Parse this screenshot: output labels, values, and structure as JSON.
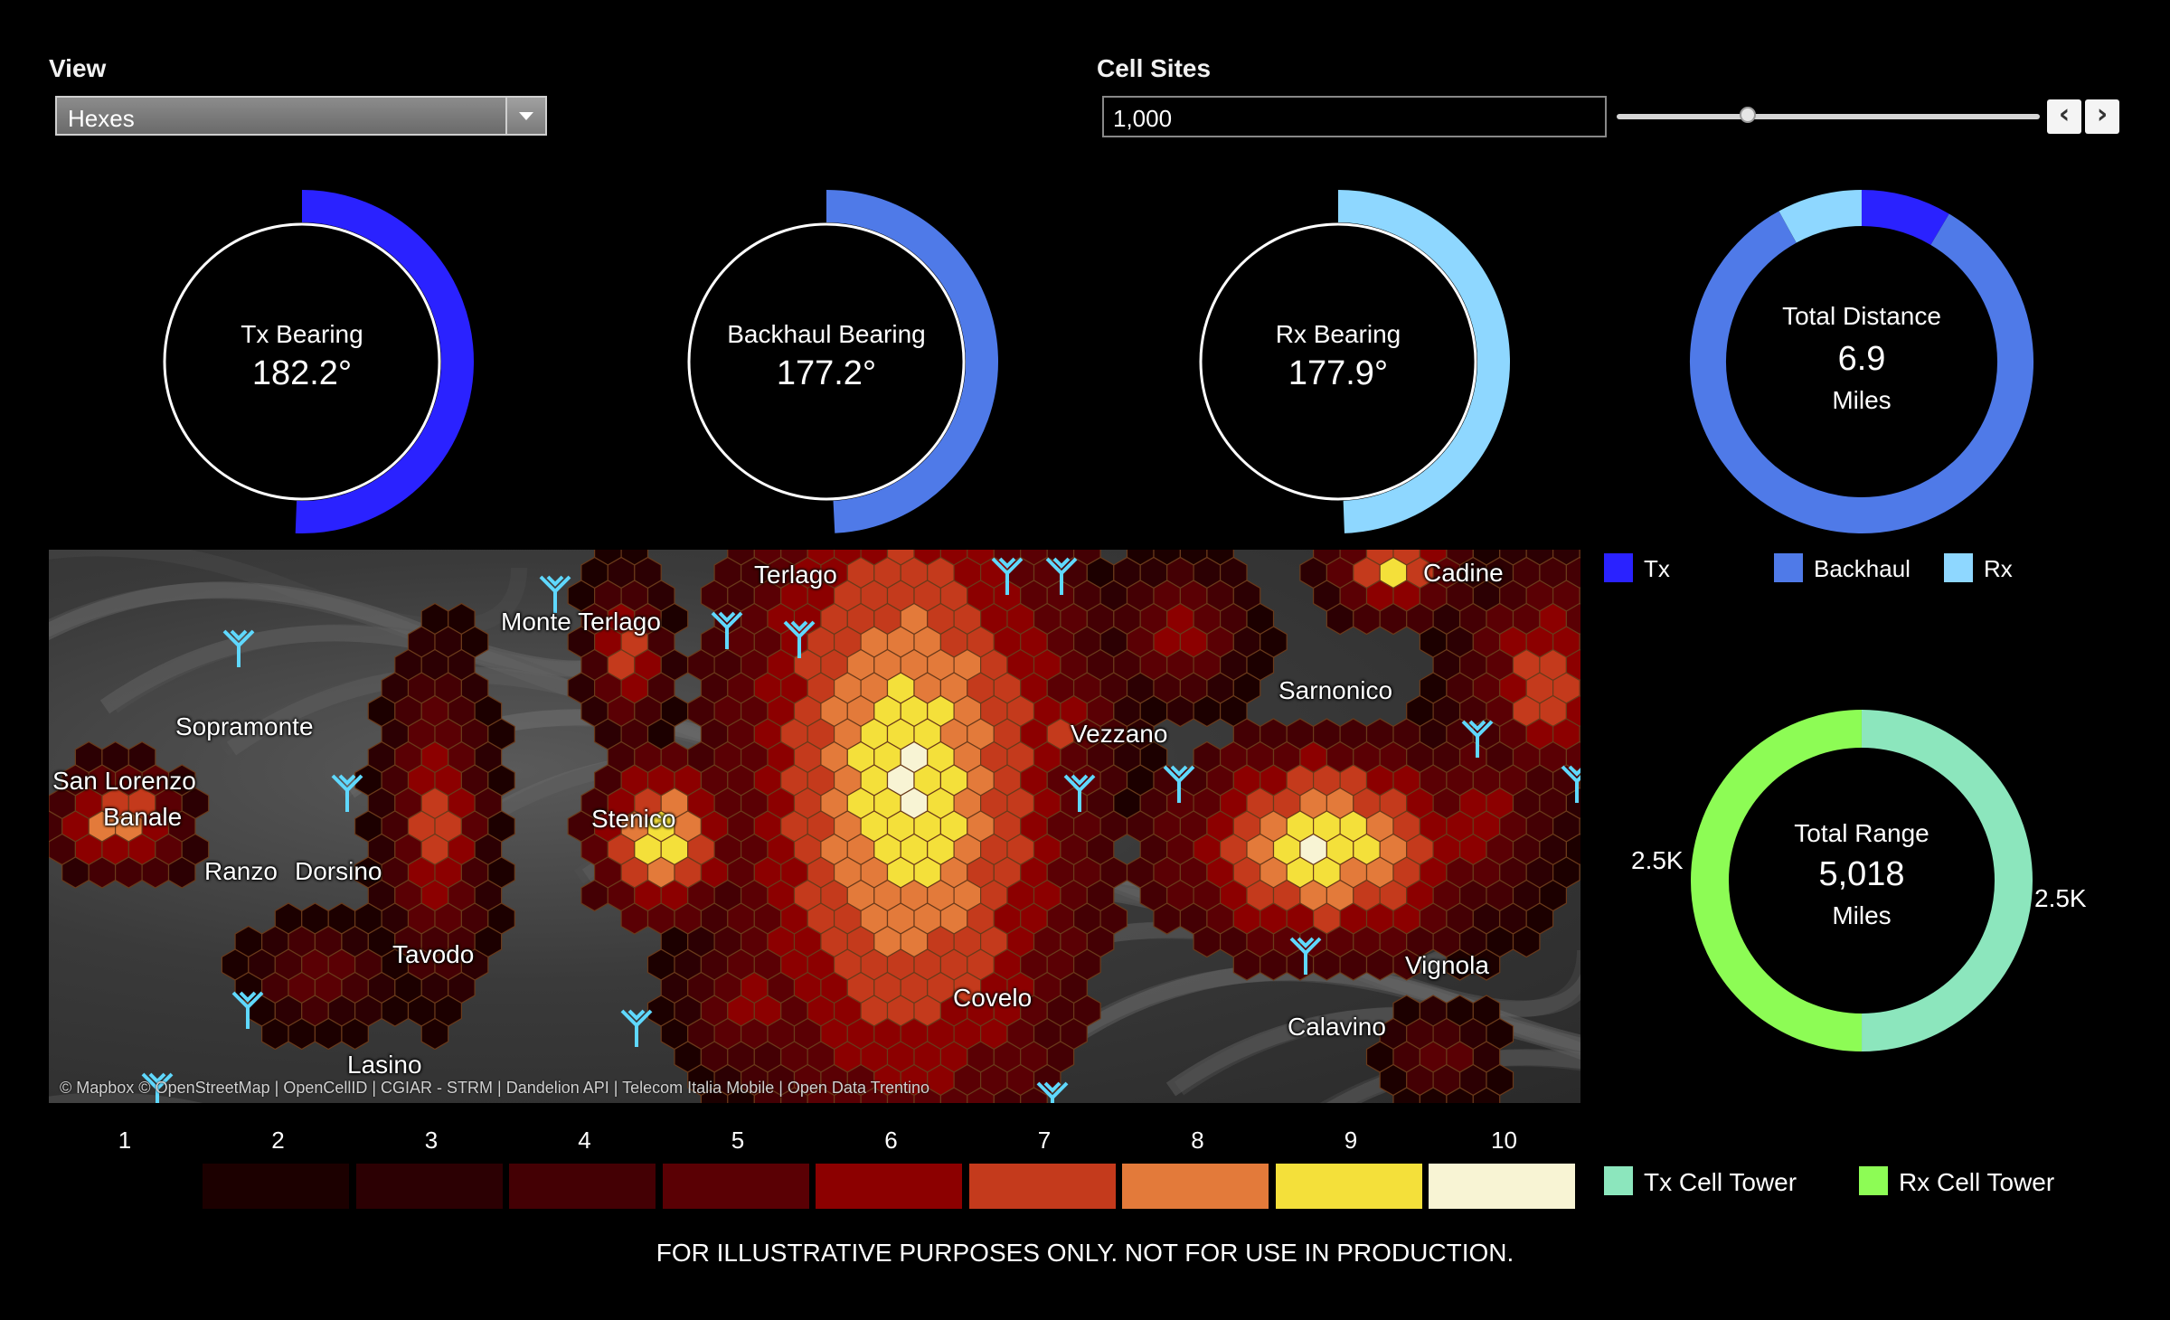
{
  "view": {
    "label": "View",
    "selected": "Hexes"
  },
  "cell_sites": {
    "label": "Cell Sites",
    "value": "1,000",
    "slider_fraction": 0.31,
    "prev_icon": "chevron-left-icon",
    "next_icon": "chevron-right-icon"
  },
  "gauges": [
    {
      "title": "Tx Bearing",
      "value": "182.2°",
      "bearing": 182.2,
      "color": "#2a22ff"
    },
    {
      "title": "Backhaul Bearing",
      "value": "177.2°",
      "bearing": 177.2,
      "color": "#4f7ae8"
    },
    {
      "title": "Rx Bearing",
      "value": "177.9°",
      "bearing": 177.9,
      "color": "#8ed7ff"
    }
  ],
  "total_distance": {
    "title": "Total Distance",
    "value": "6.9",
    "unit": "Miles",
    "segments": [
      {
        "name": "Tx",
        "fraction": 0.085,
        "color": "#2a22ff"
      },
      {
        "name": "Backhaul",
        "fraction": 0.835,
        "color": "#4f7ae8"
      },
      {
        "name": "Rx",
        "fraction": 0.08,
        "color": "#8ed7ff"
      }
    ]
  },
  "distance_legend": [
    {
      "label": "Tx",
      "color": "#2a22ff"
    },
    {
      "label": "Backhaul",
      "color": "#4f7ae8"
    },
    {
      "label": "Rx",
      "color": "#8ed7ff"
    }
  ],
  "total_range": {
    "title": "Total Range",
    "value": "5,018",
    "unit": "Miles",
    "left_label": "2.5K",
    "right_label": "2.5K",
    "segments": [
      {
        "name": "Tx Cell Tower",
        "fraction": 0.5,
        "color": "#8ce6bd"
      },
      {
        "name": "Rx Cell Tower",
        "fraction": 0.5,
        "color": "#8dfc55"
      }
    ]
  },
  "tower_legend": [
    {
      "label": "Tx Cell Tower",
      "color": "#8ce6bd"
    },
    {
      "label": "Rx Cell Tower",
      "color": "#8dfc55"
    }
  ],
  "map": {
    "places": [
      "Monte Terlago",
      "San Lorenzo",
      "Dorsino",
      "Ranzo",
      "Stenico",
      "Vezzano",
      "Lasino",
      "Covelo",
      "Vignola",
      "Sarnonico",
      "Banale",
      "Tavodo",
      "Terlago",
      "Cadine",
      "Sopramonte",
      "Calavino"
    ],
    "attribution": "© Mapbox © OpenStreetMap | OpenCellID | CGIAR - STRM | Dandelion API | Telecom Italia Mobile | Open Data Trentino",
    "tower_icon": "cell-tower-icon"
  },
  "scale": {
    "numbers": [
      "1",
      "2",
      "3",
      "4",
      "5",
      "6",
      "7",
      "8",
      "9",
      "10"
    ],
    "colors": [
      "#1c0000",
      "#2c0003",
      "#440004",
      "#5a0004",
      "#8c0000",
      "#c43a1c",
      "#e37a3a",
      "#f4e03a",
      "#f8f4d4"
    ]
  },
  "footer": "FOR ILLUSTRATIVE PURPOSES ONLY.  NOT FOR USE IN PRODUCTION."
}
